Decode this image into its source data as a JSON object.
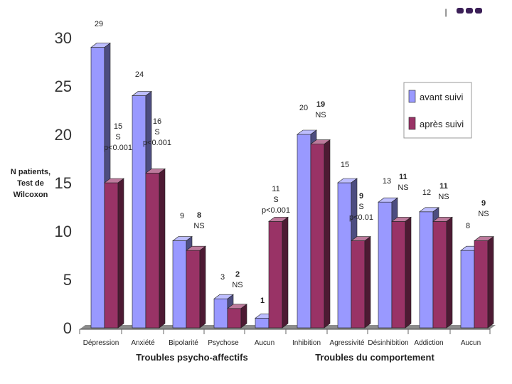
{
  "chart_data": {
    "type": "bar",
    "style": "3d-clustered",
    "ylabel": [
      "N patients,",
      "Test de",
      "Wilcoxon"
    ],
    "ylim": [
      0,
      30
    ],
    "yticks": [
      0,
      5,
      10,
      15,
      20,
      25,
      30
    ],
    "categories": [
      "Dépression",
      "Anxiété",
      "Bipolarité",
      "Psychose",
      "Aucun",
      "Inhibition",
      "Agressivité",
      "Désinhibition",
      "Addiction",
      "Aucun"
    ],
    "groups": [
      {
        "label": "Troubles psycho-affectifs",
        "categories": [
          0,
          4
        ]
      },
      {
        "label": "Troubles du comportement",
        "categories": [
          5,
          9
        ]
      }
    ],
    "series": [
      {
        "name": "avant suivi",
        "color": "#9999ff",
        "values": [
          29,
          24,
          9,
          3,
          1,
          20,
          15,
          13,
          12,
          8
        ]
      },
      {
        "name": "après suivi",
        "color": "#993366",
        "values": [
          15,
          16,
          8,
          2,
          11,
          19,
          9,
          11,
          11,
          9
        ]
      }
    ],
    "legend_position": "right",
    "annotations": [
      {
        "category": 0,
        "lines": [
          "29"
        ]
      },
      {
        "category": 0,
        "lines": [
          "15",
          "S",
          "p<0.001"
        ]
      },
      {
        "category": 1,
        "lines": [
          "24"
        ]
      },
      {
        "category": 1,
        "lines": [
          "16",
          "S",
          "p<0.001"
        ]
      },
      {
        "category": 2,
        "lines": [
          "9"
        ]
      },
      {
        "category": 2,
        "lines": [
          "8",
          "NS"
        ]
      },
      {
        "category": 3,
        "lines": [
          "3"
        ]
      },
      {
        "category": 3,
        "lines": [
          "2",
          "NS"
        ]
      },
      {
        "category": 4,
        "lines": [
          "1"
        ]
      },
      {
        "category": 4,
        "lines": [
          "11",
          "S",
          "p<0.001"
        ]
      },
      {
        "category": 5,
        "lines": [
          "20"
        ]
      },
      {
        "category": 5,
        "lines": [
          "19",
          "NS"
        ]
      },
      {
        "category": 6,
        "lines": [
          "15"
        ]
      },
      {
        "category": 6,
        "lines": [
          "9",
          "S",
          "p<0.01"
        ]
      },
      {
        "category": 7,
        "lines": [
          "13"
        ]
      },
      {
        "category": 7,
        "lines": [
          "11",
          "NS"
        ]
      },
      {
        "category": 8,
        "lines": [
          "12"
        ]
      },
      {
        "category": 8,
        "lines": [
          "11",
          "NS"
        ]
      },
      {
        "category": 9,
        "lines": [
          "8"
        ]
      },
      {
        "category": 9,
        "lines": [
          "9",
          "NS"
        ]
      }
    ]
  },
  "decor": {
    "dot_color": "#3b1f57",
    "dot_count": 3,
    "divider_glyph": "|"
  }
}
